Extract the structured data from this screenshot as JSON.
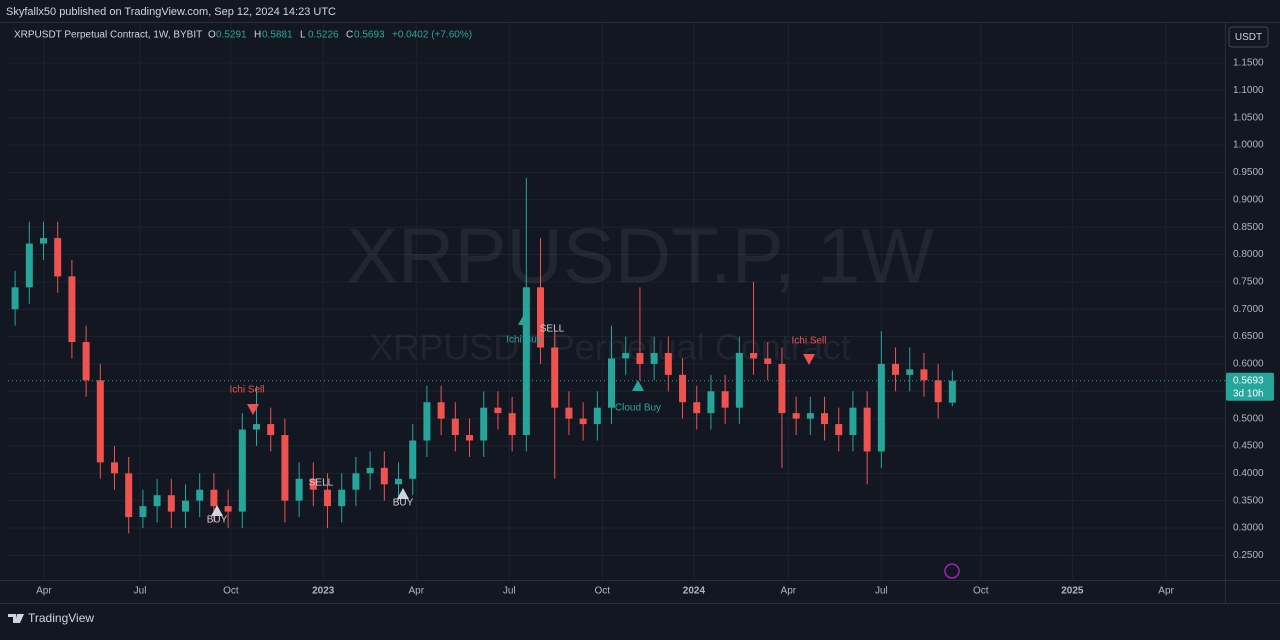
{
  "chart_data": {
    "type": "candlestick",
    "publisher": "Skyfallx50 published on TradingView.com, Sep 12, 2024 14:23 UTC",
    "title": "XRPUSDT Perpetual Contract, 1W, BYBIT",
    "ohlc_labels": [
      "O",
      "H",
      "L",
      "C"
    ],
    "change": "+0.0402 (+7.60%)",
    "watermark": "XRPUSDT.P, 1W",
    "watermark_sub": "XRPUSDT Perpetual Contract",
    "currency": "USDT",
    "countdown": "3d 10h",
    "brand": "TradingView",
    "up_color": "#26a69a",
    "down_color": "#ef5350",
    "open": [
      0.7,
      0.74,
      0.82,
      0.83,
      0.76,
      0.64,
      0.57,
      0.42,
      0.4,
      0.32,
      0.34,
      0.36,
      0.33,
      0.35,
      0.37,
      0.34,
      0.33,
      0.48,
      0.49,
      0.47,
      0.35,
      0.39,
      0.37,
      0.34,
      0.37,
      0.4,
      0.41,
      0.38,
      0.39,
      0.46,
      0.53,
      0.5,
      0.47,
      0.46,
      0.52,
      0.51,
      0.47,
      0.74,
      0.63,
      0.52,
      0.5,
      0.49,
      0.52,
      0.61,
      0.62,
      0.6,
      0.62,
      0.58,
      0.53,
      0.51,
      0.55,
      0.52,
      0.62,
      0.61,
      0.6,
      0.51,
      0.5,
      0.51,
      0.49,
      0.47,
      0.52,
      0.44,
      0.6,
      0.58,
      0.59,
      0.57,
      0.5291
    ],
    "high": [
      0.77,
      0.86,
      0.86,
      0.86,
      0.79,
      0.67,
      0.6,
      0.45,
      0.43,
      0.37,
      0.39,
      0.39,
      0.38,
      0.4,
      0.4,
      0.37,
      0.51,
      0.56,
      0.52,
      0.5,
      0.42,
      0.42,
      0.4,
      0.4,
      0.43,
      0.44,
      0.44,
      0.42,
      0.49,
      0.56,
      0.56,
      0.53,
      0.5,
      0.55,
      0.55,
      0.54,
      0.94,
      0.83,
      0.66,
      0.55,
      0.53,
      0.55,
      0.67,
      0.65,
      0.74,
      0.65,
      0.65,
      0.61,
      0.56,
      0.58,
      0.58,
      0.65,
      0.75,
      0.64,
      0.63,
      0.54,
      0.54,
      0.54,
      0.52,
      0.55,
      0.55,
      0.66,
      0.63,
      0.63,
      0.62,
      0.6,
      0.5881
    ],
    "low": [
      0.67,
      0.71,
      0.79,
      0.73,
      0.61,
      0.54,
      0.39,
      0.37,
      0.29,
      0.3,
      0.31,
      0.3,
      0.3,
      0.32,
      0.31,
      0.3,
      0.3,
      0.45,
      0.44,
      0.31,
      0.32,
      0.34,
      0.3,
      0.31,
      0.34,
      0.37,
      0.35,
      0.35,
      0.36,
      0.43,
      0.47,
      0.44,
      0.43,
      0.43,
      0.48,
      0.44,
      0.44,
      0.6,
      0.39,
      0.47,
      0.46,
      0.46,
      0.49,
      0.58,
      0.57,
      0.57,
      0.55,
      0.5,
      0.48,
      0.48,
      0.49,
      0.49,
      0.58,
      0.57,
      0.41,
      0.47,
      0.47,
      0.46,
      0.44,
      0.44,
      0.38,
      0.41,
      0.55,
      0.55,
      0.54,
      0.5,
      0.5226
    ],
    "close": [
      0.74,
      0.82,
      0.83,
      0.76,
      0.64,
      0.57,
      0.42,
      0.4,
      0.32,
      0.34,
      0.36,
      0.33,
      0.35,
      0.37,
      0.34,
      0.33,
      0.48,
      0.49,
      0.47,
      0.35,
      0.39,
      0.37,
      0.34,
      0.37,
      0.4,
      0.41,
      0.38,
      0.39,
      0.46,
      0.53,
      0.5,
      0.47,
      0.46,
      0.52,
      0.51,
      0.47,
      0.74,
      0.63,
      0.52,
      0.5,
      0.49,
      0.52,
      0.61,
      0.62,
      0.6,
      0.62,
      0.58,
      0.53,
      0.51,
      0.55,
      0.52,
      0.62,
      0.61,
      0.6,
      0.51,
      0.5,
      0.51,
      0.49,
      0.47,
      0.52,
      0.44,
      0.6,
      0.58,
      0.59,
      0.57,
      0.53,
      0.5693
    ],
    "xlim": [
      -0.5,
      85.2
    ],
    "xticks": [
      {
        "value": 2.03,
        "label": "Apr"
      },
      {
        "value": 8.8,
        "label": "Jul"
      },
      {
        "value": 15.2,
        "label": "Oct"
      },
      {
        "value": 21.7,
        "label": "2023"
      },
      {
        "value": 28.25,
        "label": "Apr"
      },
      {
        "value": 34.8,
        "label": "Jul"
      },
      {
        "value": 41.35,
        "label": "Oct"
      },
      {
        "value": 47.8,
        "label": "2024"
      },
      {
        "value": 54.45,
        "label": "Apr"
      },
      {
        "value": 61,
        "label": "Jul"
      },
      {
        "value": 68,
        "label": "Oct"
      },
      {
        "value": 74.45,
        "label": "2025"
      },
      {
        "value": 81.05,
        "label": "Apr"
      }
    ],
    "ylim": [
      0.205,
      1.225
    ],
    "yticks": [
      {
        "value": 0.25,
        "label": "0.2500"
      },
      {
        "value": 0.3,
        "label": "0.3000"
      },
      {
        "value": 0.35,
        "label": "0.3500"
      },
      {
        "value": 0.4,
        "label": "0.4000"
      },
      {
        "value": 0.45,
        "label": "0.4500"
      },
      {
        "value": 0.5,
        "label": "0.5000"
      },
      {
        "value": 0.55,
        "label": "0.5500"
      },
      {
        "value": 0.6,
        "label": "0.6000"
      },
      {
        "value": 0.65,
        "label": "0.6500"
      },
      {
        "value": 0.7,
        "label": "0.7000"
      },
      {
        "value": 0.75,
        "label": "0.7500"
      },
      {
        "value": 0.8,
        "label": "0.8000"
      },
      {
        "value": 0.85,
        "label": "0.8500"
      },
      {
        "value": 0.9,
        "label": "0.9000"
      },
      {
        "value": 0.95,
        "label": "0.9500"
      },
      {
        "value": 1.0,
        "label": "1.0000"
      },
      {
        "value": 1.05,
        "label": "1.0500"
      },
      {
        "value": 1.1,
        "label": "1.1000"
      },
      {
        "value": 1.15,
        "label": "1.1500"
      }
    ],
    "grid": true,
    "annotations": [
      "Ichi Sell",
      "BUY",
      "SELL",
      "BUY",
      "Ichi Buy",
      "SELL",
      "Cloud Buy",
      "Ichi Sell"
    ]
  }
}
